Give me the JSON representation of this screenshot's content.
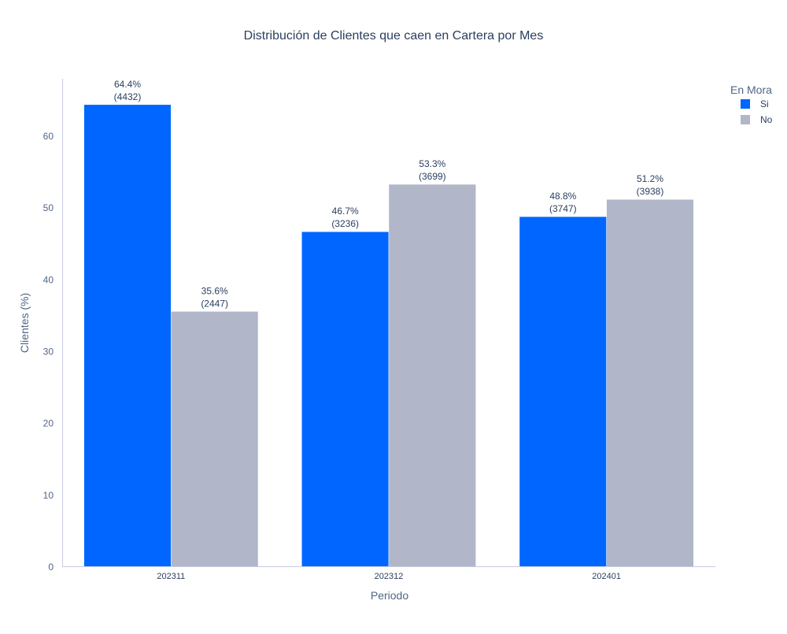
{
  "chart_data": {
    "type": "bar",
    "title": "Distribución de Clientes que caen en Cartera por Mes",
    "xlabel": "Periodo",
    "ylabel": "Clientes (%)",
    "categories": [
      "202311",
      "202312",
      "202401"
    ],
    "ylim": [
      0,
      68
    ],
    "yticks": [
      0,
      10,
      20,
      30,
      40,
      50,
      60
    ],
    "grid": false,
    "legend_title": "En Mora",
    "legend_position": "top-right",
    "series": [
      {
        "name": "Si",
        "color": "#0066ff",
        "values": [
          64.4,
          46.7,
          48.8
        ],
        "labels_pct": [
          "64.4%",
          "46.7%",
          "48.8%"
        ],
        "labels_count": [
          "(4432)",
          "(3236)",
          "(3747)"
        ]
      },
      {
        "name": "No",
        "color": "#b1b7c8",
        "values": [
          35.6,
          53.3,
          51.2
        ],
        "labels_pct": [
          "35.6%",
          "53.3%",
          "51.2%"
        ],
        "labels_count": [
          "(2447)",
          "(3699)",
          "(3938)"
        ]
      }
    ]
  }
}
